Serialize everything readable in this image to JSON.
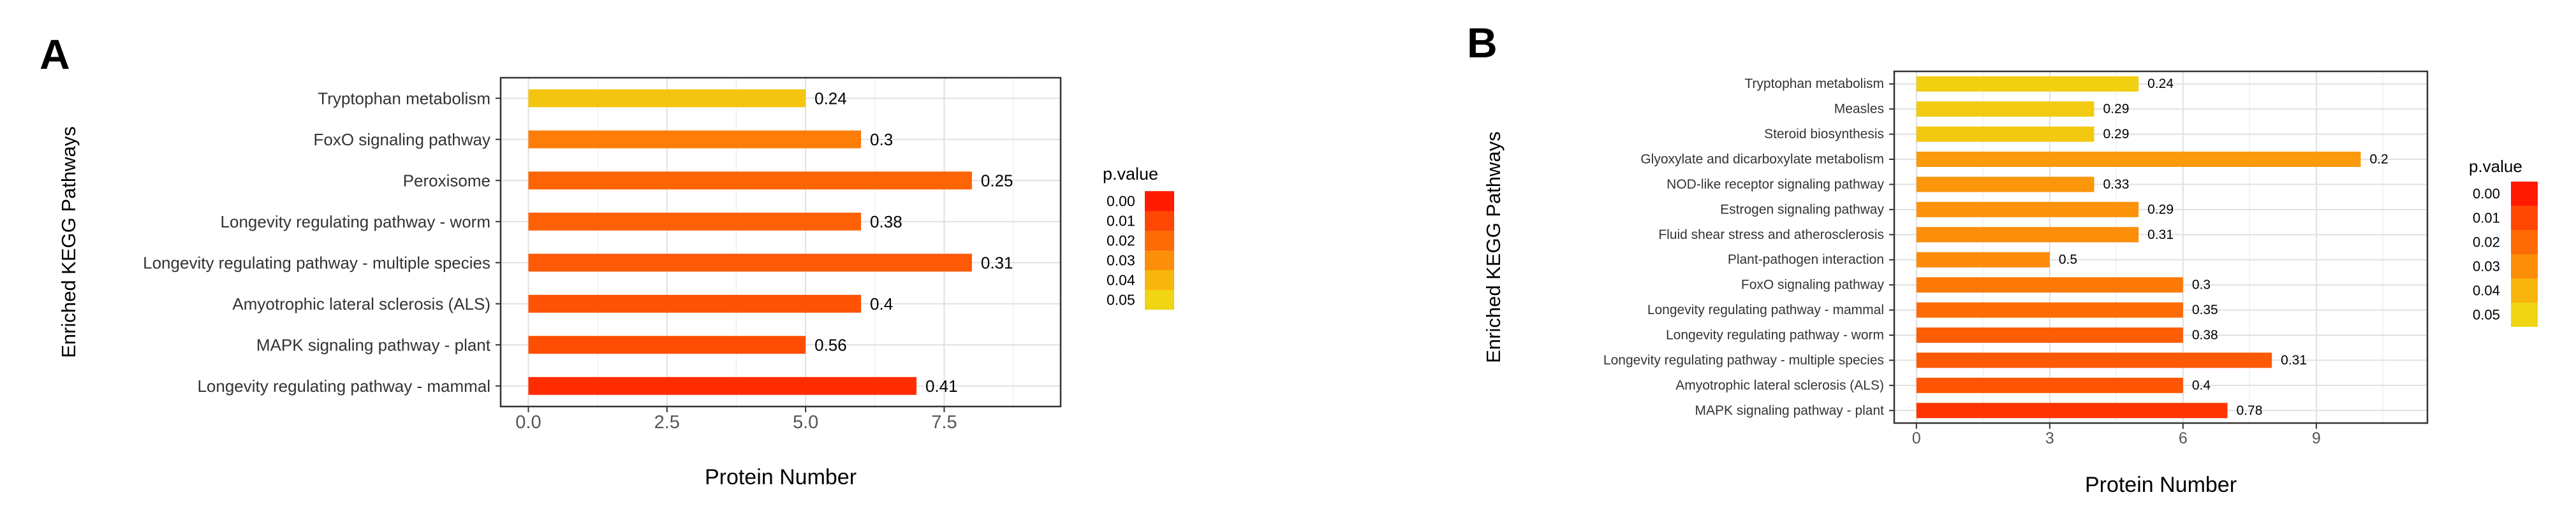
{
  "figure": {
    "panel_a_label": "A",
    "panel_b_label": "B"
  },
  "chart_data": [
    {
      "type": "bar",
      "orientation": "horizontal",
      "panel": "A",
      "title": "",
      "xlabel": "Protein Number",
      "ylabel": "Enriched KEGG Pathways",
      "xlim": [
        -0.5,
        9.6
      ],
      "xticks": [
        "0.0",
        "2.5",
        "5.0",
        "7.5"
      ],
      "xtick_values": [
        0,
        2.5,
        5,
        7.5
      ],
      "grid": true,
      "legend": {
        "title": "p.value",
        "position": "right",
        "entries": [
          "0.00",
          "0.01",
          "0.02",
          "0.03",
          "0.04",
          "0.05"
        ],
        "colors": [
          "#ff1a00",
          "#fe4703",
          "#fd6b06",
          "#fc8e09",
          "#f8b50d",
          "#efd512"
        ]
      },
      "categories": [
        "Tryptophan metabolism",
        "FoxO signaling pathway",
        "Peroxisome",
        "Longevity regulating pathway - worm",
        "Longevity regulating pathway - multiple species",
        "Amyotrophic lateral sclerosis (ALS)",
        "MAPK signaling pathway - plant",
        "Longevity regulating pathway - mammal"
      ],
      "values": [
        5,
        6,
        8,
        6,
        8,
        6,
        5,
        7
      ],
      "labels": [
        "0.24",
        "0.3",
        "0.25",
        "0.38",
        "0.31",
        "0.4",
        "0.56",
        "0.41"
      ],
      "pvalues": [
        0.045,
        0.025,
        0.018,
        0.017,
        0.015,
        0.013,
        0.012,
        0.004
      ]
    },
    {
      "type": "bar",
      "orientation": "horizontal",
      "panel": "B",
      "title": "",
      "xlabel": "Protein Number",
      "ylabel": "Enriched KEGG Pathways",
      "xlim": [
        -0.5,
        11.5
      ],
      "xticks": [
        "0",
        "3",
        "6",
        "9"
      ],
      "xtick_values": [
        0,
        3,
        6,
        9
      ],
      "grid": true,
      "legend": {
        "title": "p.value",
        "position": "right",
        "entries": [
          "0.00",
          "0.01",
          "0.02",
          "0.03",
          "0.04",
          "0.05"
        ],
        "colors": [
          "#ff1a00",
          "#fe4703",
          "#fd6b06",
          "#fc8e09",
          "#f8b50d",
          "#efd512"
        ]
      },
      "categories": [
        "Tryptophan metabolism",
        "Measles",
        "Steroid biosynthesis",
        "Glyoxylate and dicarboxylate metabolism",
        "NOD-like receptor signaling pathway",
        "Estrogen signaling pathway",
        "Fluid shear stress and atherosclerosis",
        "Plant-pathogen interaction",
        "FoxO signaling pathway",
        "Longevity regulating pathway - mammal",
        "Longevity regulating pathway - worm",
        "Longevity regulating pathway - multiple species",
        "Amyotrophic lateral sclerosis (ALS)",
        "MAPK signaling pathway - plant"
      ],
      "values": [
        5,
        4,
        4,
        10,
        4,
        5,
        5,
        3,
        6,
        6,
        6,
        8,
        6,
        7
      ],
      "labels": [
        "0.24",
        "0.29",
        "0.29",
        "0.2",
        "0.33",
        "0.29",
        "0.31",
        "0.5",
        "0.3",
        "0.35",
        "0.38",
        "0.31",
        "0.4",
        "0.78"
      ],
      "pvalues": [
        0.048,
        0.047,
        0.046,
        0.033,
        0.032,
        0.031,
        0.03,
        0.029,
        0.024,
        0.02,
        0.016,
        0.015,
        0.014,
        0.006
      ]
    }
  ]
}
